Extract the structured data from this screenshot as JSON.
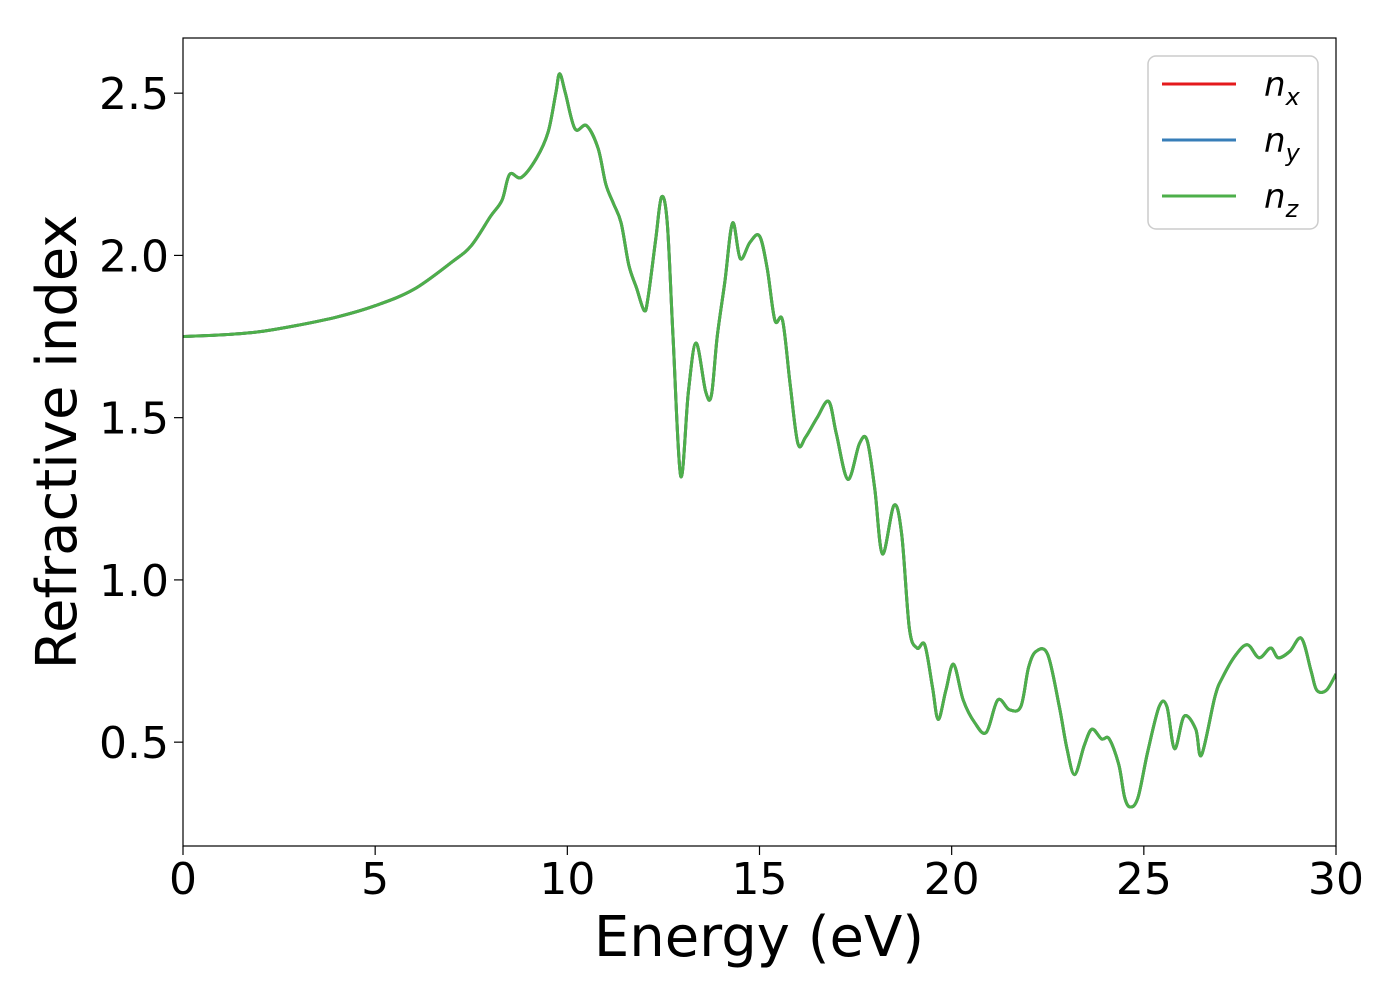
{
  "chart_data": {
    "type": "line",
    "xlabel": "Energy (eV)",
    "ylabel": "Refractive index",
    "xlim": [
      0,
      30
    ],
    "ylim": [
      0.18,
      2.67
    ],
    "xticks": [
      0,
      5,
      10,
      15,
      20,
      25,
      30
    ],
    "xtick_labels": [
      "0",
      "5",
      "10",
      "15",
      "20",
      "25",
      "30"
    ],
    "yticks": [
      0.5,
      1.0,
      1.5,
      2.0,
      2.5
    ],
    "ytick_labels": [
      "0.5",
      "1.0",
      "1.5",
      "2.0",
      "2.5"
    ],
    "grid": false,
    "legend_position": "top-right",
    "x": [
      0,
      1,
      2,
      3,
      4,
      5,
      6,
      7,
      7.5,
      8,
      8.3,
      8.5,
      8.8,
      9.2,
      9.5,
      9.7,
      9.8,
      9.95,
      10.2,
      10.5,
      10.8,
      11.0,
      11.2,
      11.4,
      11.6,
      11.8,
      12.0,
      12.1,
      12.3,
      12.45,
      12.6,
      12.75,
      12.95,
      13.15,
      13.35,
      13.6,
      13.75,
      13.9,
      14.1,
      14.3,
      14.5,
      14.75,
      15.0,
      15.2,
      15.4,
      15.6,
      15.8,
      16.0,
      16.2,
      16.5,
      16.8,
      17.0,
      17.3,
      17.6,
      17.8,
      18.0,
      18.2,
      18.5,
      18.7,
      18.9,
      19.1,
      19.3,
      19.5,
      19.65,
      19.85,
      20.05,
      20.3,
      20.6,
      20.9,
      21.2,
      21.5,
      21.8,
      22.0,
      22.2,
      22.5,
      22.8,
      23.0,
      23.2,
      23.45,
      23.65,
      23.9,
      24.1,
      24.35,
      24.5,
      24.65,
      24.85,
      25.1,
      25.4,
      25.6,
      25.8,
      26.05,
      26.35,
      26.5,
      26.85,
      27.05,
      27.4,
      27.7,
      28.0,
      28.3,
      28.5,
      28.8,
      29.1,
      29.35,
      29.5,
      29.75,
      30.0
    ],
    "series": [
      {
        "name": "n_x",
        "color": "#e41a1c",
        "values": [
          1.75,
          1.755,
          1.765,
          1.785,
          1.81,
          1.845,
          1.895,
          1.98,
          2.03,
          2.12,
          2.17,
          2.25,
          2.24,
          2.3,
          2.38,
          2.5,
          2.56,
          2.5,
          2.39,
          2.4,
          2.33,
          2.22,
          2.16,
          2.1,
          1.97,
          1.9,
          1.83,
          1.87,
          2.05,
          2.18,
          2.1,
          1.75,
          1.32,
          1.58,
          1.73,
          1.58,
          1.57,
          1.75,
          1.92,
          2.1,
          1.99,
          2.04,
          2.06,
          1.96,
          1.8,
          1.8,
          1.6,
          1.42,
          1.44,
          1.5,
          1.55,
          1.45,
          1.31,
          1.42,
          1.43,
          1.28,
          1.08,
          1.23,
          1.14,
          0.85,
          0.79,
          0.8,
          0.67,
          0.57,
          0.66,
          0.74,
          0.63,
          0.56,
          0.53,
          0.63,
          0.6,
          0.61,
          0.73,
          0.78,
          0.77,
          0.61,
          0.48,
          0.4,
          0.49,
          0.54,
          0.51,
          0.51,
          0.43,
          0.33,
          0.3,
          0.33,
          0.47,
          0.61,
          0.61,
          0.48,
          0.58,
          0.54,
          0.46,
          0.64,
          0.7,
          0.77,
          0.8,
          0.76,
          0.79,
          0.76,
          0.78,
          0.82,
          0.72,
          0.66,
          0.66,
          0.71
        ]
      },
      {
        "name": "n_y",
        "color": "#377eb8",
        "values": [
          1.75,
          1.755,
          1.765,
          1.785,
          1.81,
          1.845,
          1.895,
          1.98,
          2.03,
          2.12,
          2.17,
          2.25,
          2.24,
          2.3,
          2.38,
          2.5,
          2.56,
          2.5,
          2.39,
          2.4,
          2.33,
          2.22,
          2.16,
          2.1,
          1.97,
          1.9,
          1.83,
          1.87,
          2.05,
          2.18,
          2.1,
          1.75,
          1.32,
          1.58,
          1.73,
          1.58,
          1.57,
          1.75,
          1.92,
          2.1,
          1.99,
          2.04,
          2.06,
          1.96,
          1.8,
          1.8,
          1.6,
          1.42,
          1.44,
          1.5,
          1.55,
          1.45,
          1.31,
          1.42,
          1.43,
          1.28,
          1.08,
          1.23,
          1.14,
          0.85,
          0.79,
          0.8,
          0.67,
          0.57,
          0.66,
          0.74,
          0.63,
          0.56,
          0.53,
          0.63,
          0.6,
          0.61,
          0.73,
          0.78,
          0.77,
          0.61,
          0.48,
          0.4,
          0.49,
          0.54,
          0.51,
          0.51,
          0.43,
          0.33,
          0.3,
          0.33,
          0.47,
          0.61,
          0.61,
          0.48,
          0.58,
          0.54,
          0.46,
          0.64,
          0.7,
          0.77,
          0.8,
          0.76,
          0.79,
          0.76,
          0.78,
          0.82,
          0.72,
          0.66,
          0.66,
          0.71
        ]
      },
      {
        "name": "n_z",
        "color": "#4daf4a",
        "values": [
          1.75,
          1.755,
          1.765,
          1.785,
          1.81,
          1.845,
          1.895,
          1.98,
          2.03,
          2.12,
          2.17,
          2.25,
          2.24,
          2.3,
          2.38,
          2.5,
          2.56,
          2.5,
          2.39,
          2.4,
          2.33,
          2.22,
          2.16,
          2.1,
          1.97,
          1.9,
          1.83,
          1.87,
          2.05,
          2.18,
          2.1,
          1.75,
          1.32,
          1.58,
          1.73,
          1.58,
          1.57,
          1.75,
          1.92,
          2.1,
          1.99,
          2.04,
          2.06,
          1.96,
          1.8,
          1.8,
          1.6,
          1.42,
          1.44,
          1.5,
          1.55,
          1.45,
          1.31,
          1.42,
          1.43,
          1.28,
          1.08,
          1.23,
          1.14,
          0.85,
          0.79,
          0.8,
          0.67,
          0.57,
          0.66,
          0.74,
          0.63,
          0.56,
          0.53,
          0.63,
          0.6,
          0.61,
          0.73,
          0.78,
          0.77,
          0.61,
          0.48,
          0.4,
          0.49,
          0.54,
          0.51,
          0.51,
          0.43,
          0.33,
          0.3,
          0.33,
          0.47,
          0.61,
          0.61,
          0.48,
          0.58,
          0.54,
          0.46,
          0.64,
          0.7,
          0.77,
          0.8,
          0.76,
          0.79,
          0.76,
          0.78,
          0.82,
          0.72,
          0.66,
          0.66,
          0.71
        ]
      }
    ],
    "legend": [
      {
        "base": "n",
        "sub": "x",
        "color": "#e41a1c"
      },
      {
        "base": "n",
        "sub": "y",
        "color": "#377eb8"
      },
      {
        "base": "n",
        "sub": "z",
        "color": "#4daf4a"
      }
    ]
  }
}
